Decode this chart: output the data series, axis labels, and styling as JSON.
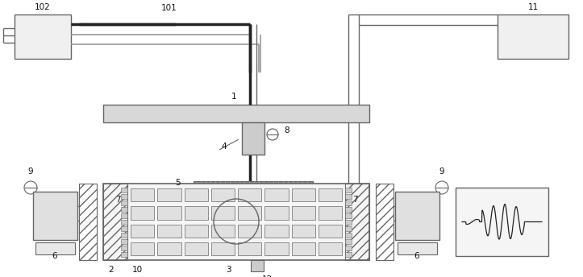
{
  "fig_width": 7.23,
  "fig_height": 3.44,
  "dpi": 100,
  "bg_color": "#ffffff",
  "lc": "#666666",
  "dc": "#222222",
  "lc2": "#999999"
}
